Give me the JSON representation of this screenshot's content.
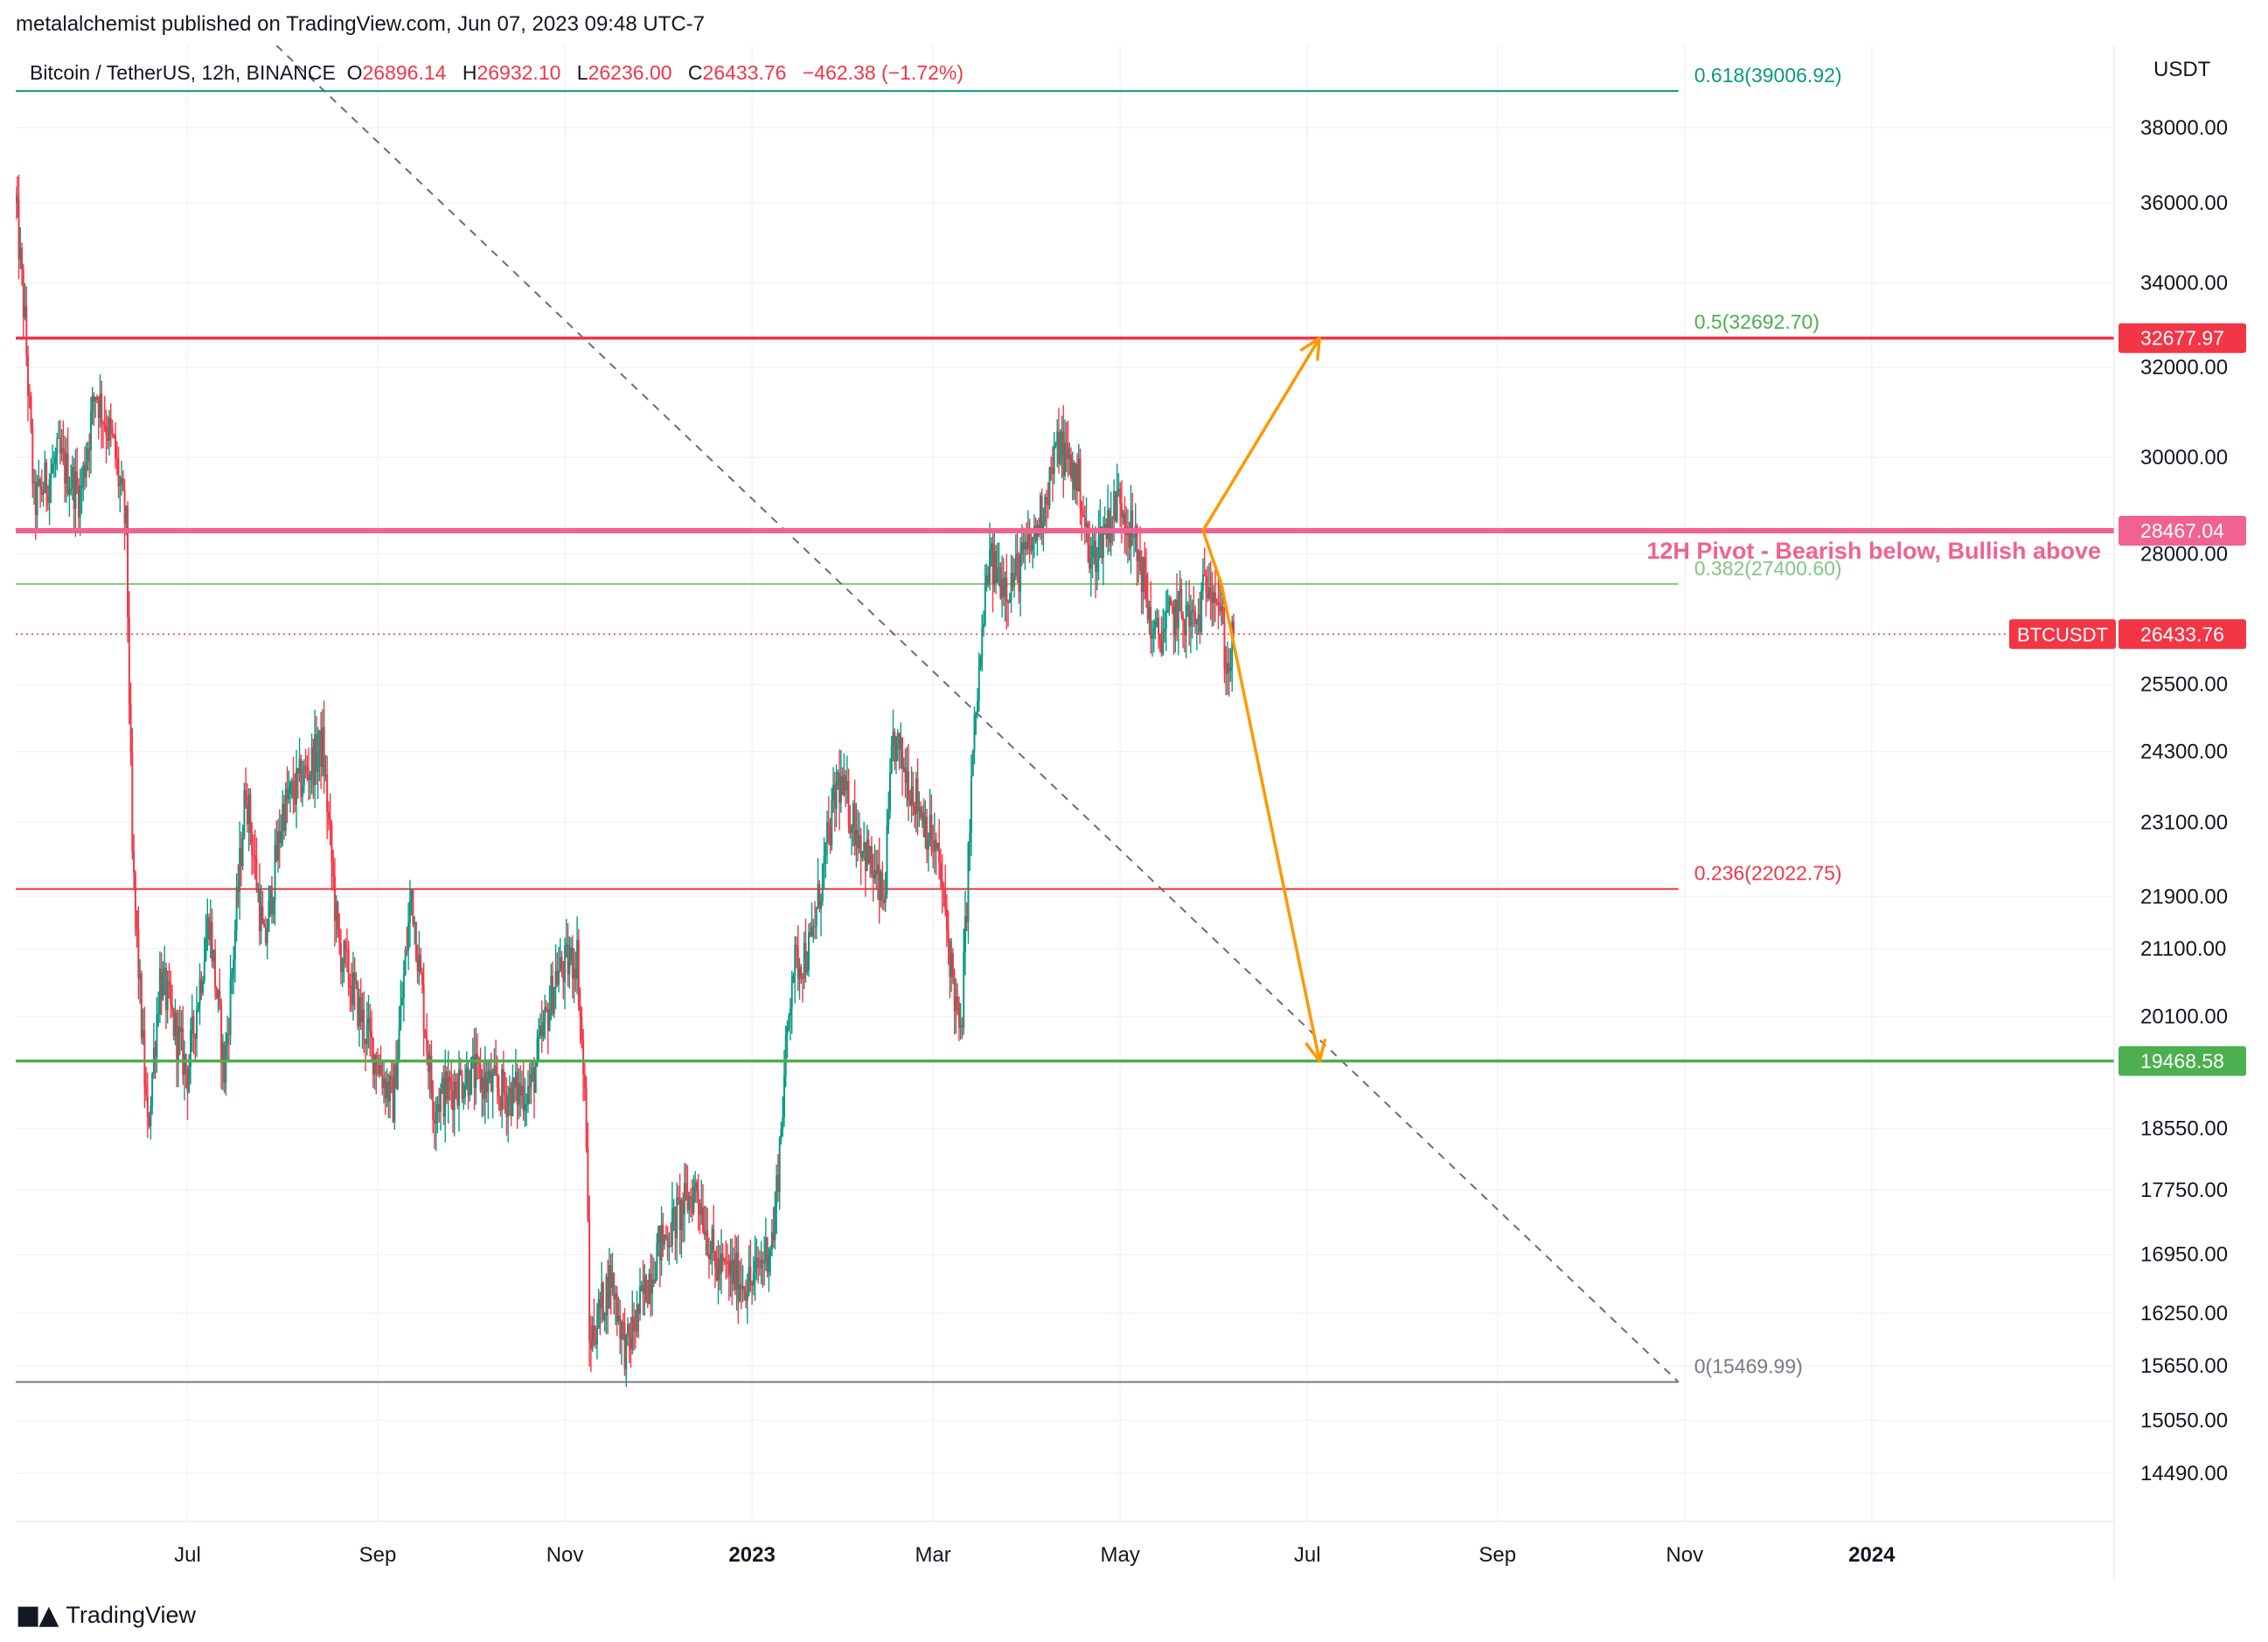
{
  "publisher_line": "metalalchemist published on TradingView.com, Jun 07, 2023 09:48 UTC-7",
  "legend": {
    "symbol": "Bitcoin / TetherUS, 12h, BINANCE",
    "o_label": "O",
    "o": "26896.14",
    "h_label": "H",
    "h": "26932.10",
    "l_label": "L",
    "l": "26236.00",
    "c_label": "C",
    "c": "26433.76",
    "change": "−462.38 (−1.72%)"
  },
  "footer": {
    "brand": "TradingView"
  },
  "colors": {
    "bull": "#089981",
    "bear": "#f23645",
    "orange": "#ff9800",
    "pivot": "#f06292",
    "green_level": "#4caf50",
    "red_level": "#f23645",
    "fib_0618": "#089981",
    "fib_05": "#4caf50",
    "fib_0382": "#81c784",
    "fib_0236": "#f23645",
    "fib_0": "#787b86",
    "grid": "#f0f3fa"
  },
  "chart_data": {
    "type": "candlestick",
    "symbol": "BTCUSDT",
    "interval": "12h",
    "exchange": "BINANCE",
    "currency": "USDT",
    "scale": "log",
    "grid": true,
    "y_ticks": [
      38000,
      36000,
      34000,
      32000,
      30000,
      28000,
      25500,
      24300,
      23100,
      21900,
      21100,
      20100,
      18550,
      17750,
      16950,
      16250,
      15650,
      15050,
      14490
    ],
    "y_tick_labels": [
      "38000.00",
      "36000.00",
      "34000.00",
      "32000.00",
      "30000.00",
      "28000.00",
      "25500.00",
      "24300.00",
      "23100.00",
      "21900.00",
      "21100.00",
      "20100.00",
      "18550.00",
      "17750.00",
      "16950.00",
      "16250.00",
      "15650.00",
      "15050.00",
      "14490.00"
    ],
    "ylim": [
      14000,
      40300
    ],
    "x_range": [
      "2022-05-06",
      "2024-03-20"
    ],
    "x_ticks": [
      {
        "date": "2022-07-01",
        "label": "Jul",
        "bold": false
      },
      {
        "date": "2022-09-01",
        "label": "Sep",
        "bold": false
      },
      {
        "date": "2022-11-01",
        "label": "Nov",
        "bold": false
      },
      {
        "date": "2023-01-01",
        "label": "2023",
        "bold": true
      },
      {
        "date": "2023-03-01",
        "label": "Mar",
        "bold": false
      },
      {
        "date": "2023-05-01",
        "label": "May",
        "bold": false
      },
      {
        "date": "2023-07-01",
        "label": "Jul",
        "bold": false
      },
      {
        "date": "2023-09-01",
        "label": "Sep",
        "bold": false
      },
      {
        "date": "2023-11-01",
        "label": "Nov",
        "bold": false
      },
      {
        "date": "2024-01-01",
        "label": "2024",
        "bold": true
      }
    ],
    "price_path": [
      {
        "date": "2022-05-06",
        "price": 36000
      },
      {
        "date": "2022-05-09",
        "price": 33000
      },
      {
        "date": "2022-05-12",
        "price": 29000
      },
      {
        "date": "2022-05-20",
        "price": 30000
      },
      {
        "date": "2022-05-27",
        "price": 29200
      },
      {
        "date": "2022-06-01",
        "price": 31500
      },
      {
        "date": "2022-06-07",
        "price": 30200
      },
      {
        "date": "2022-06-11",
        "price": 28500
      },
      {
        "date": "2022-06-13",
        "price": 22500
      },
      {
        "date": "2022-06-18",
        "price": 18500
      },
      {
        "date": "2022-06-22",
        "price": 20700
      },
      {
        "date": "2022-07-01",
        "price": 19300
      },
      {
        "date": "2022-07-08",
        "price": 21600
      },
      {
        "date": "2022-07-13",
        "price": 19300
      },
      {
        "date": "2022-07-20",
        "price": 23700
      },
      {
        "date": "2022-07-26",
        "price": 21100
      },
      {
        "date": "2022-08-01",
        "price": 23300
      },
      {
        "date": "2022-08-14",
        "price": 24400
      },
      {
        "date": "2022-08-19",
        "price": 21200
      },
      {
        "date": "2022-08-28",
        "price": 19900
      },
      {
        "date": "2022-09-06",
        "price": 18900
      },
      {
        "date": "2022-09-12",
        "price": 22000
      },
      {
        "date": "2022-09-19",
        "price": 18900
      },
      {
        "date": "2022-10-01",
        "price": 19300
      },
      {
        "date": "2022-10-13",
        "price": 19000
      },
      {
        "date": "2022-10-21",
        "price": 19100
      },
      {
        "date": "2022-10-29",
        "price": 20700
      },
      {
        "date": "2022-11-05",
        "price": 21000
      },
      {
        "date": "2022-11-08",
        "price": 18500
      },
      {
        "date": "2022-11-09",
        "price": 15900
      },
      {
        "date": "2022-11-16",
        "price": 16700
      },
      {
        "date": "2022-11-21",
        "price": 15800
      },
      {
        "date": "2022-12-01",
        "price": 17000
      },
      {
        "date": "2022-12-14",
        "price": 17800
      },
      {
        "date": "2022-12-20",
        "price": 16800
      },
      {
        "date": "2023-01-01",
        "price": 16600
      },
      {
        "date": "2023-01-08",
        "price": 17200
      },
      {
        "date": "2023-01-14",
        "price": 20800
      },
      {
        "date": "2023-01-20",
        "price": 21100
      },
      {
        "date": "2023-01-29",
        "price": 23800
      },
      {
        "date": "2023-02-05",
        "price": 22900
      },
      {
        "date": "2023-02-13",
        "price": 21800
      },
      {
        "date": "2023-02-16",
        "price": 24500
      },
      {
        "date": "2023-02-26",
        "price": 23200
      },
      {
        "date": "2023-03-03",
        "price": 22400
      },
      {
        "date": "2023-03-10",
        "price": 19700
      },
      {
        "date": "2023-03-14",
        "price": 24300
      },
      {
        "date": "2023-03-19",
        "price": 27800
      },
      {
        "date": "2023-03-26",
        "price": 27400
      },
      {
        "date": "2023-04-03",
        "price": 28300
      },
      {
        "date": "2023-04-11",
        "price": 30300
      },
      {
        "date": "2023-04-18",
        "price": 29400
      },
      {
        "date": "2023-04-21",
        "price": 27800
      },
      {
        "date": "2023-04-26",
        "price": 28500
      },
      {
        "date": "2023-05-01",
        "price": 29200
      },
      {
        "date": "2023-05-08",
        "price": 27700
      },
      {
        "date": "2023-05-12",
        "price": 26300
      },
      {
        "date": "2023-05-20",
        "price": 26900
      },
      {
        "date": "2023-05-26",
        "price": 26600
      },
      {
        "date": "2023-05-30",
        "price": 27700
      },
      {
        "date": "2023-06-02",
        "price": 27100
      },
      {
        "date": "2023-06-05",
        "price": 25700
      },
      {
        "date": "2023-06-07",
        "price": 26433.76
      }
    ],
    "last_price": 26433.76,
    "last_price_label": "26433.76",
    "symbol_tag": "BTCUSDT",
    "horizontal_levels": [
      {
        "name": "red-resistance",
        "price": 32677.97,
        "label": "32677.97",
        "color": "#f23645"
      },
      {
        "name": "pivot",
        "price": 28467.04,
        "label": "28467.04",
        "color": "#f06292"
      },
      {
        "name": "green-support",
        "price": 19468.58,
        "label": "19468.58",
        "color": "#4caf50"
      }
    ],
    "pivot_annotation": "12H Pivot -  Bearish below, Bullish above",
    "fibonacci": {
      "start_date": "2022-05-06",
      "end_date": "2023-10-30",
      "levels": [
        {
          "ratio": "0.618",
          "price": 39006.92,
          "label": "0.618(39006.92)",
          "color": "#089981"
        },
        {
          "ratio": "0.5",
          "price": 32692.7,
          "label": "0.5(32692.70)",
          "color": "#4caf50"
        },
        {
          "ratio": "0.382",
          "price": 27400.6,
          "label": "0.382(27400.60)",
          "color": "#81c784"
        },
        {
          "ratio": "0.236",
          "price": 22022.75,
          "label": "0.236(22022.75)",
          "color": "#f23645"
        },
        {
          "ratio": "0",
          "price": 15469.99,
          "label": "0(15469.99)",
          "color": "#787b86"
        }
      ]
    },
    "trend_line": {
      "from": {
        "date": "2022-07-30",
        "price": 40300
      },
      "to": {
        "date": "2023-10-30",
        "price": 15469.99
      }
    },
    "scenarios": [
      {
        "name": "bullish-path",
        "points": [
          {
            "date": "2023-05-28",
            "price": 28467.04
          },
          {
            "date": "2023-07-05",
            "price": 32677.97
          }
        ],
        "color": "#ff9800"
      },
      {
        "name": "bearish-path",
        "points": [
          {
            "date": "2023-05-28",
            "price": 28467.04
          },
          {
            "date": "2023-06-03",
            "price": 27400.6
          },
          {
            "date": "2023-07-05",
            "price": 19468.58
          }
        ],
        "color": "#ff9800"
      }
    ]
  }
}
